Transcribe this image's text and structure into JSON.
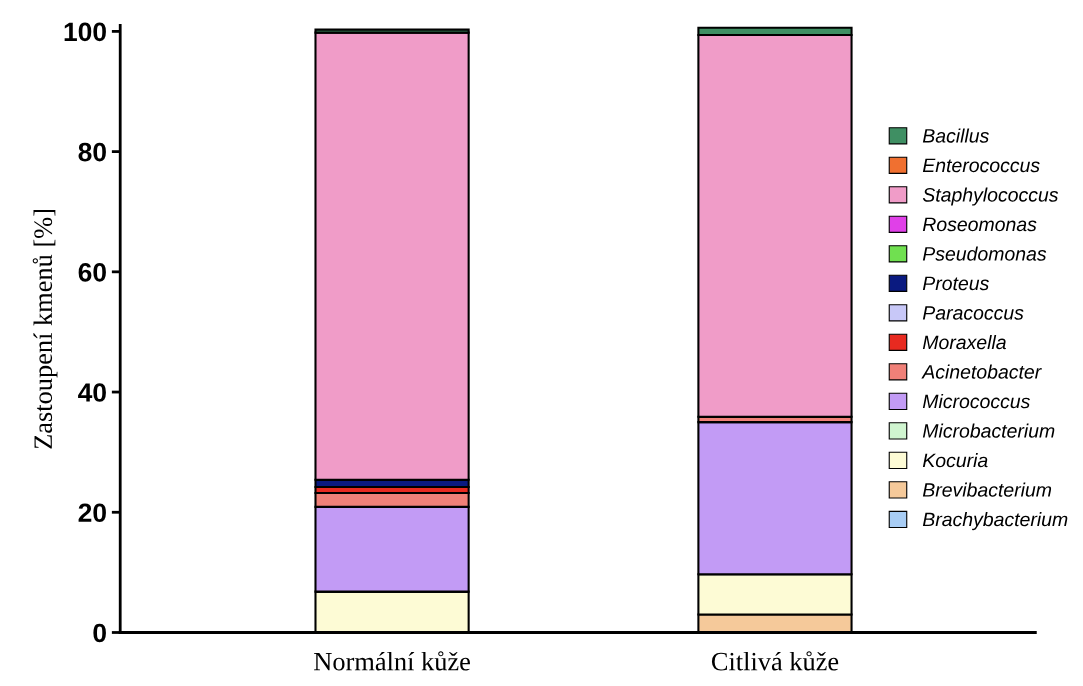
{
  "chart_data": {
    "type": "bar",
    "stacked": true,
    "ylabel": "Zastoupení kmenů [%]",
    "categories": [
      "Normální kůže",
      "Citlivá kůže"
    ],
    "ylim": [
      0,
      101
    ],
    "yticks": [
      0,
      20,
      40,
      60,
      80,
      100
    ],
    "grid": false,
    "legend": "right",
    "series": [
      {
        "name": "Brachybacterium",
        "color": "#a8cdf5",
        "values": [
          0,
          0
        ]
      },
      {
        "name": "Brevibacterium",
        "color": "#f5c99a",
        "values": [
          0,
          3
        ]
      },
      {
        "name": "Kocuria",
        "color": "#fdfbd5",
        "values": [
          6.8,
          6.7
        ]
      },
      {
        "name": "Microbacterium",
        "color": "#d0f5d0",
        "values": [
          0,
          0
        ]
      },
      {
        "name": "Micrococcus",
        "color": "#c29bf5",
        "values": [
          14.1,
          25.3
        ]
      },
      {
        "name": "Acinetobacter",
        "color": "#f08078",
        "values": [
          2.3,
          0.9
        ]
      },
      {
        "name": "Moraxella",
        "color": "#e82a20",
        "values": [
          1.0,
          null
        ]
      },
      {
        "name": "Paracoccus",
        "color": "#c8c8f8",
        "values": [
          null,
          0
        ]
      },
      {
        "name": "Proteus",
        "color": "#0a1a80",
        "values": [
          1.2,
          null
        ]
      },
      {
        "name": "Pseudomonas",
        "color": "#70e050",
        "values": [
          null,
          0
        ]
      },
      {
        "name": "Roseomonas",
        "color": "#e040e8",
        "values": [
          0,
          0
        ]
      },
      {
        "name": "Staphylococcus",
        "color": "#f09cc8",
        "values": [
          74.4,
          63.5
        ]
      },
      {
        "name": "Enterococcus",
        "color": "#f07030",
        "values": [
          null,
          null
        ]
      },
      {
        "name": "Bacillus",
        "color": "#3f8f63",
        "values": [
          0.5,
          1.2
        ]
      }
    ]
  }
}
